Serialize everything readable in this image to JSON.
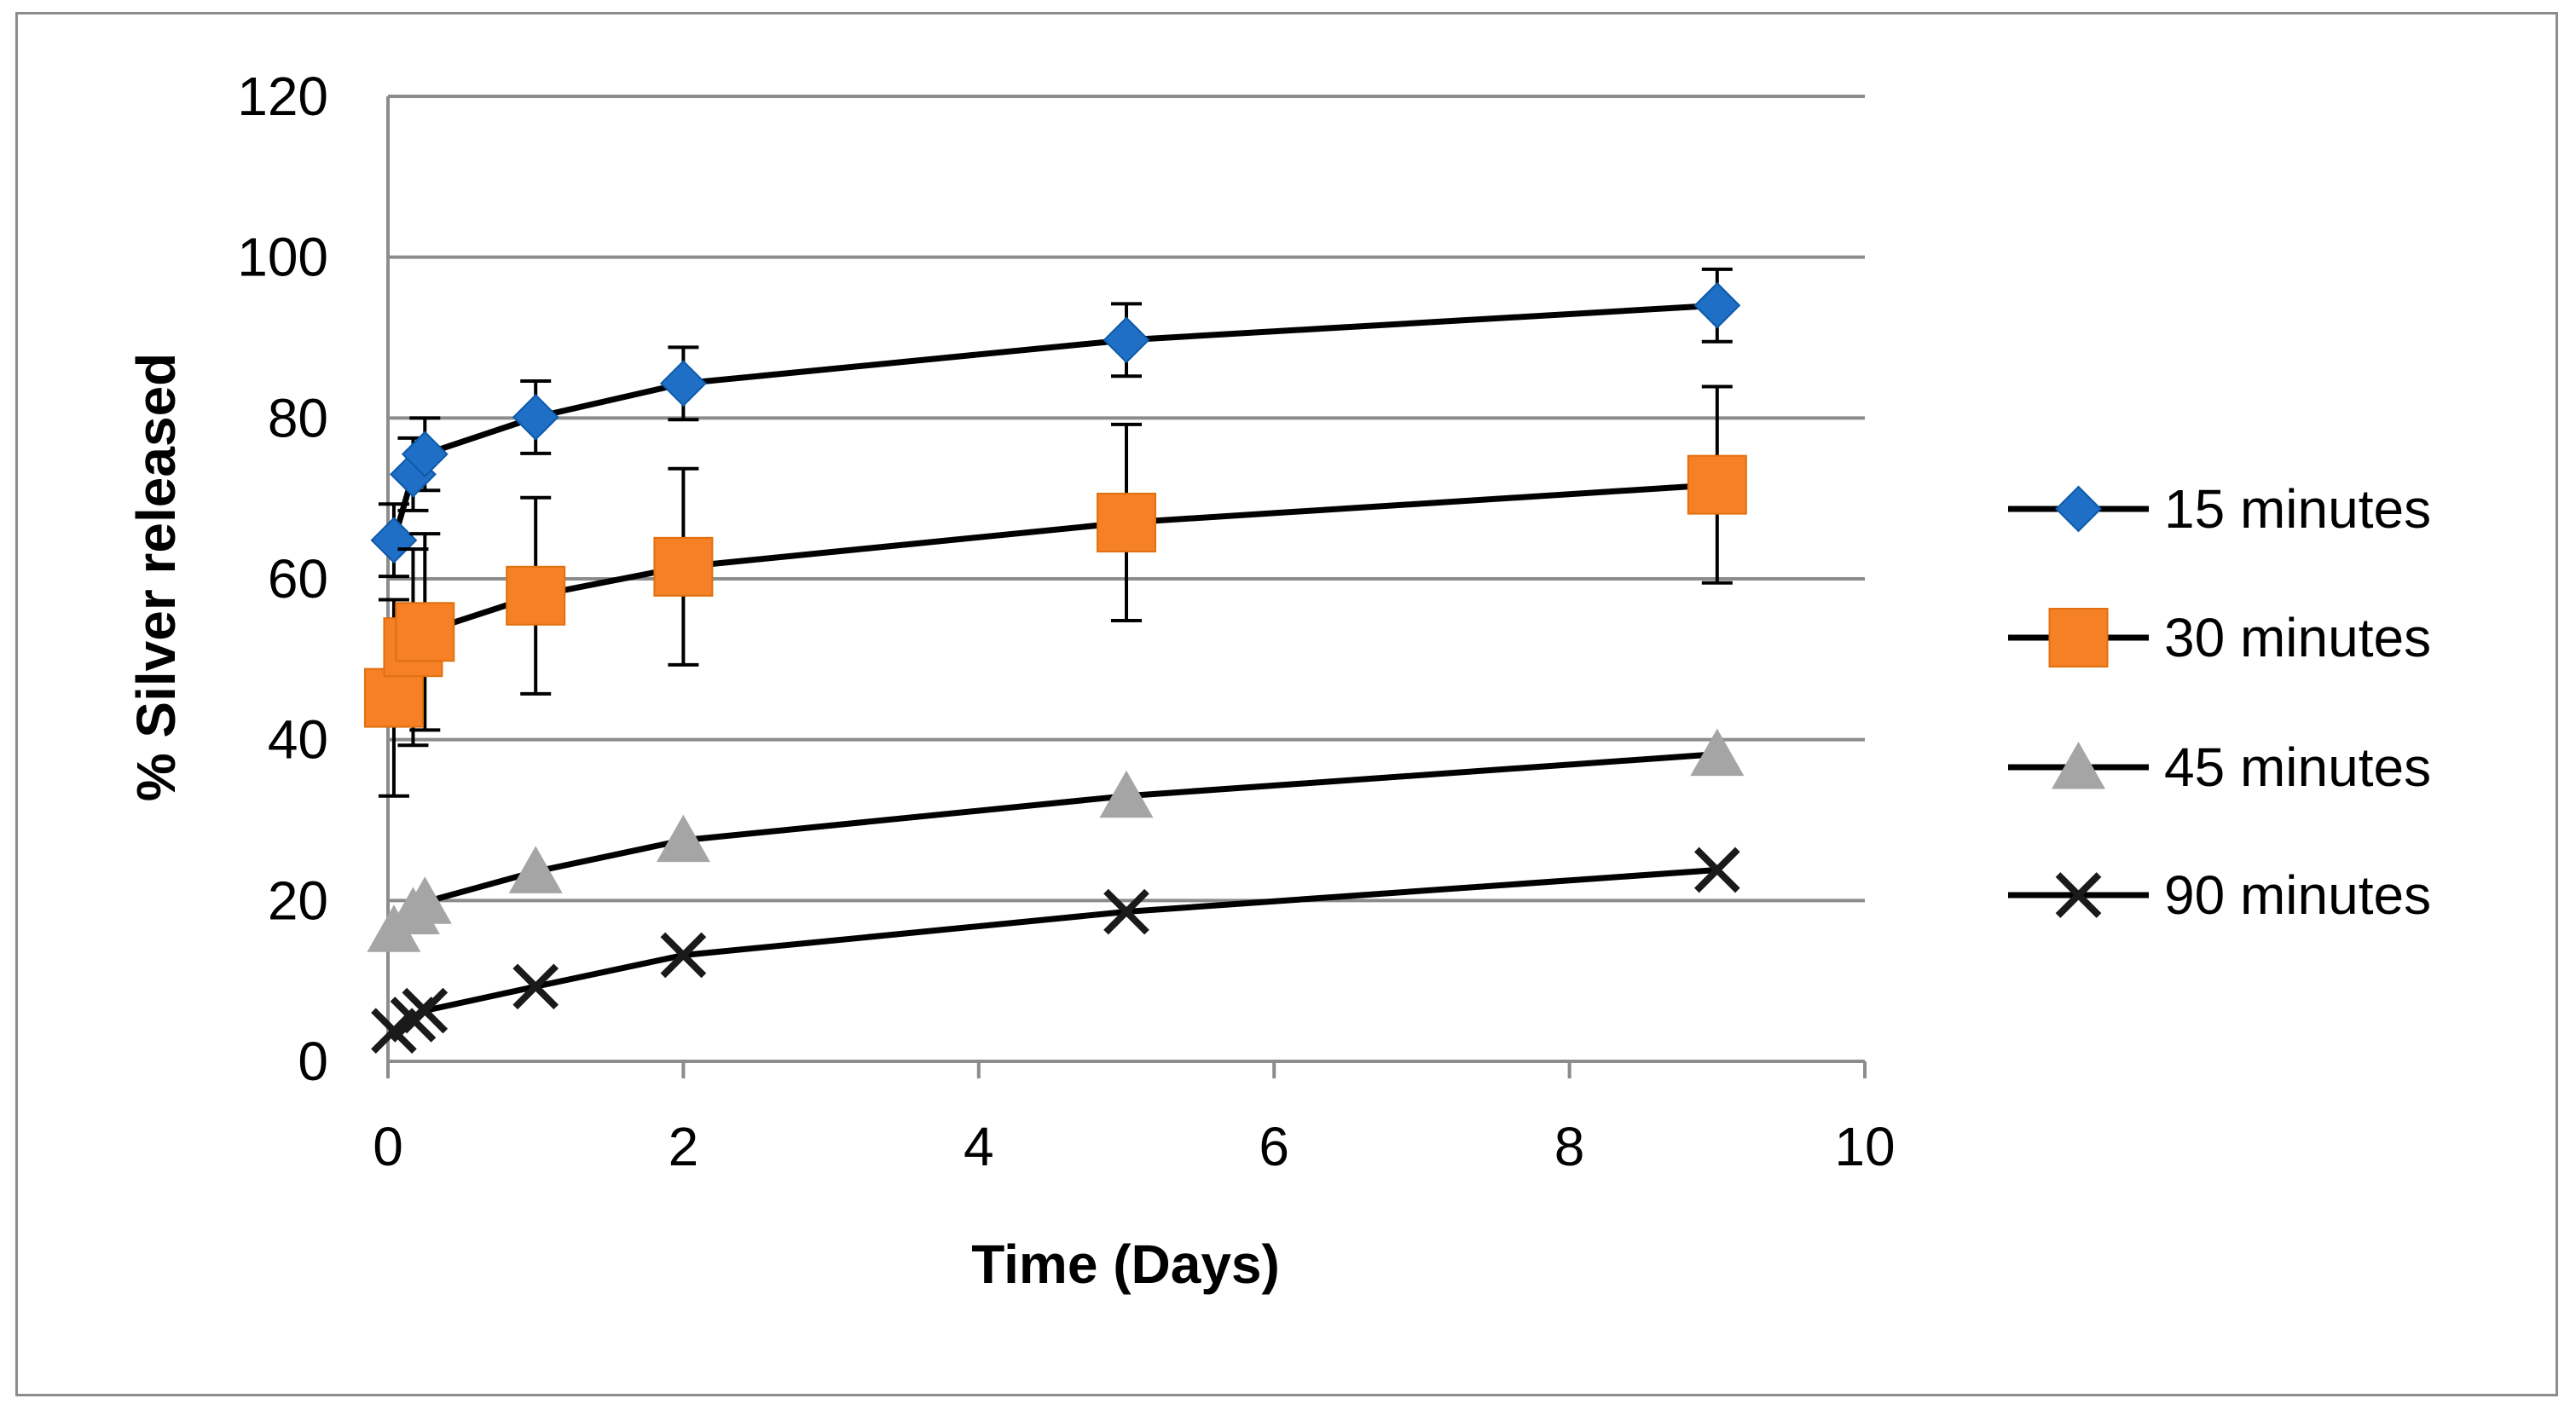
{
  "chart_data": {
    "type": "line",
    "title": "",
    "xlabel": "Time (Days)",
    "ylabel": "% Silver released",
    "xlim": [
      0,
      10
    ],
    "ylim": [
      0,
      120
    ],
    "x_ticks": [
      "0",
      "2",
      "4",
      "6",
      "8",
      "10"
    ],
    "y_ticks": [
      "0",
      "20",
      "40",
      "60",
      "80",
      "100",
      "120"
    ],
    "grid": "horizontal",
    "legend_position": "right",
    "series": [
      {
        "name": "15 minutes",
        "marker": "diamond",
        "color": "#1f6fc6",
        "x": [
          0.04,
          0.17,
          0.25,
          1,
          2,
          5,
          9
        ],
        "y": [
          64.8,
          73,
          75.5,
          80.1,
          84.3,
          89.7,
          94
        ],
        "error": [
          4.5,
          4.5,
          4.5,
          4.5,
          4.5,
          4.5,
          4.5
        ]
      },
      {
        "name": "30 minutes",
        "marker": "square",
        "color": "#f58025",
        "x": [
          0.04,
          0.17,
          0.25,
          1,
          2,
          5,
          9
        ],
        "y": [
          45.2,
          51.5,
          53.4,
          57.9,
          61.5,
          67,
          71.7
        ],
        "error": [
          12.2,
          12.2,
          12.2,
          12.2,
          12.2,
          12.2,
          12.2
        ]
      },
      {
        "name": "45 minutes",
        "marker": "triangle",
        "color": "#a5a5a5",
        "x": [
          0.04,
          0.17,
          0.25,
          1,
          2,
          5,
          9
        ],
        "y": [
          16.3,
          18.5,
          19.8,
          23.6,
          27.5,
          33,
          38.2
        ],
        "error": []
      },
      {
        "name": "90 minutes",
        "marker": "x",
        "color": "#1a1a1a",
        "x": [
          0.04,
          0.17,
          0.25,
          1,
          2,
          5,
          9
        ],
        "y": [
          3.8,
          5.2,
          6.3,
          9.3,
          13.2,
          18.6,
          23.8
        ],
        "error": []
      }
    ]
  }
}
